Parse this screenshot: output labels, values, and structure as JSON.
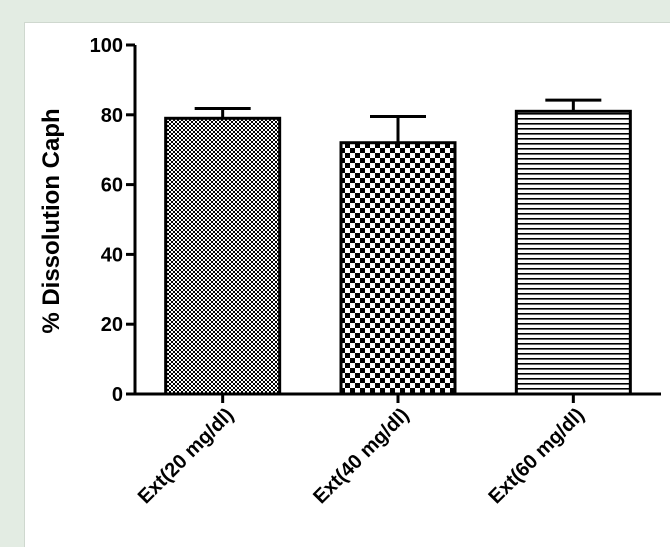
{
  "chart_data": {
    "type": "bar",
    "title": "",
    "xlabel": "",
    "ylabel": "% Dissolution Caph",
    "ylim": [
      0,
      100
    ],
    "yticks": [
      0,
      20,
      40,
      60,
      80,
      100
    ],
    "categories": [
      "Ext(20 mg/dl)",
      "Ext(40 mg/dl)",
      "Ext(60 mg/dl)"
    ],
    "values": [
      79,
      72,
      81
    ],
    "errors": [
      2.8,
      7.5,
      3.2
    ],
    "bar_patterns": [
      "fine-checker",
      "coarse-checker",
      "horizontal-lines"
    ],
    "grid": false,
    "legend": "none"
  },
  "colors": {
    "background": "#e3ece3",
    "plot_background": "#ffffff",
    "ink": "#000000"
  }
}
